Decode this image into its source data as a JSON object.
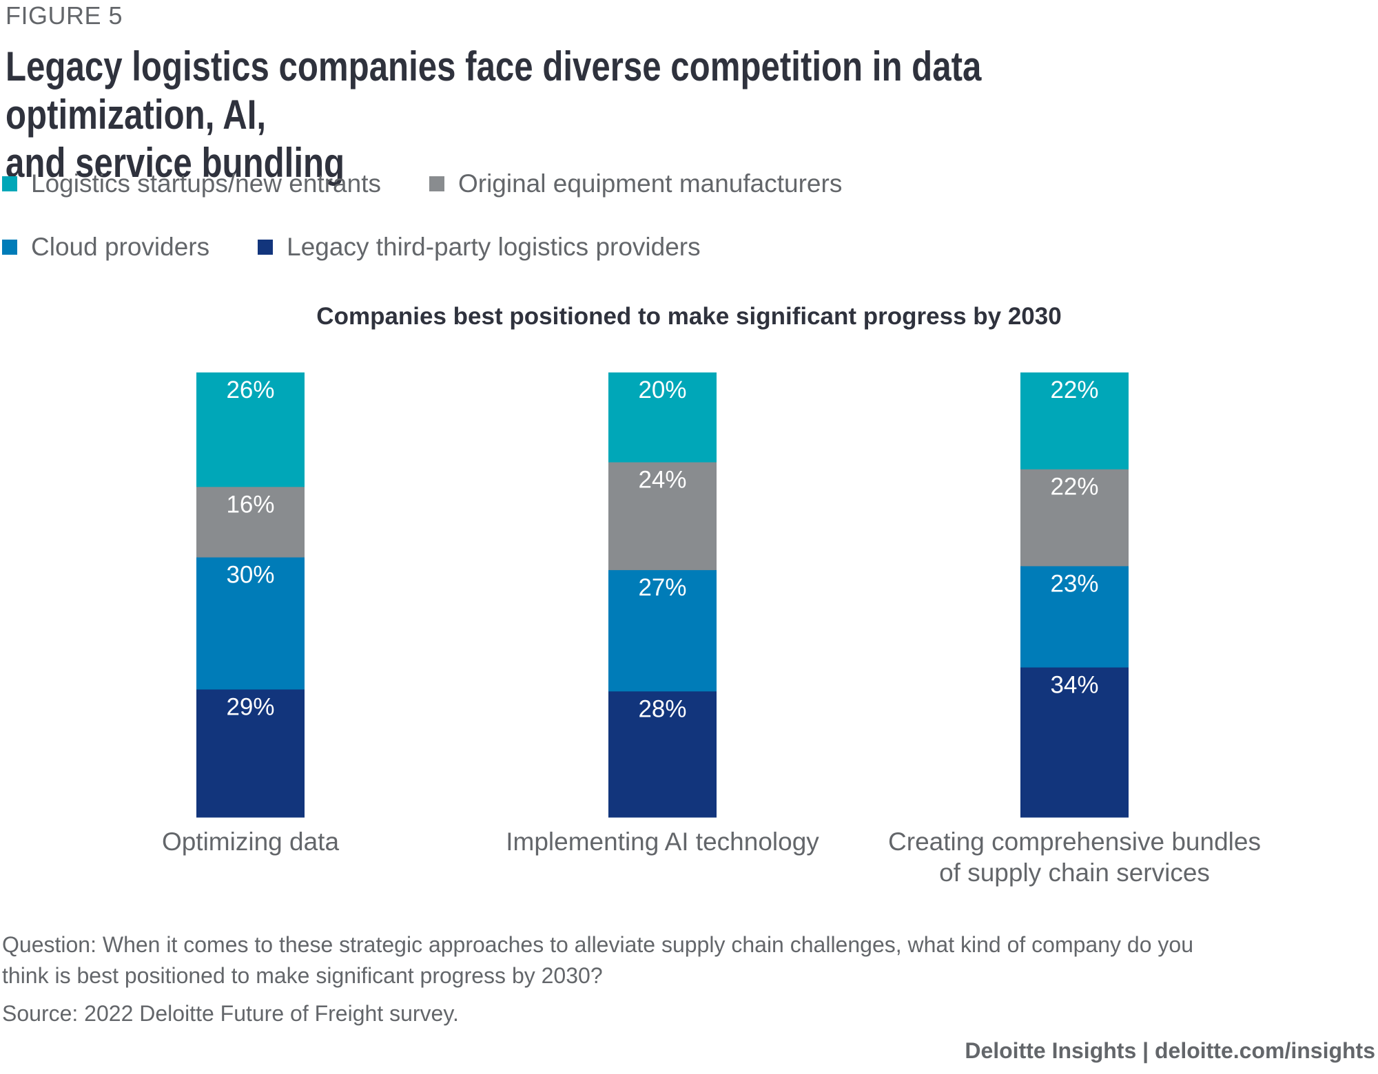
{
  "figure_label": "FIGURE 5",
  "title": "Legacy logistics companies face diverse competition in data optimization, AI, and service bundling",
  "title_line1": "Legacy logistics companies face diverse competition in data optimization, AI,",
  "title_line2": "and service bundling",
  "legend": [
    {
      "label": "Logistics startups/new entrants",
      "color": "#00a7b8"
    },
    {
      "label": "Original equipment manufacturers",
      "color": "#898c8f"
    },
    {
      "label": "Cloud providers",
      "color": "#007cb8"
    },
    {
      "label": "Legacy third-party logistics providers",
      "color": "#12357c"
    }
  ],
  "footnote": {
    "question_line1": "Question: When it comes to these strategic approaches to alleviate supply chain challenges, what kind of company do you",
    "question_line2": "think is best positioned to make significant progress by 2030?",
    "source": "Source: 2022 Deloitte Future of Freight survey."
  },
  "branding": "Deloitte Insights | deloitte.com/insights",
  "chart_data": {
    "type": "bar",
    "stacked": true,
    "orientation": "vertical",
    "title": "Companies best positioned to make significant progress by 2030",
    "xlabel": "",
    "ylabel": "",
    "categories": [
      "Optimizing data",
      "Implementing AI technology",
      "Creating comprehensive bundles of supply chain services"
    ],
    "category_lines": [
      [
        "Optimizing data"
      ],
      [
        "Implementing AI technology"
      ],
      [
        "Creating comprehensive bundles",
        "of supply chain services"
      ]
    ],
    "series": [
      {
        "name": "Logistics startups/new entrants",
        "color": "#00a7b8",
        "values": [
          26,
          20,
          22
        ]
      },
      {
        "name": "Original equipment manufacturers",
        "color": "#898c8f",
        "values": [
          16,
          24,
          22
        ]
      },
      {
        "name": "Cloud providers",
        "color": "#007cb8",
        "values": [
          30,
          27,
          23
        ]
      },
      {
        "name": "Legacy third-party logistics providers",
        "color": "#12357c",
        "values": [
          29,
          28,
          34
        ]
      }
    ],
    "stack_order_top_to_bottom": [
      "Logistics startups/new entrants",
      "Original equipment manufacturers",
      "Cloud providers",
      "Legacy third-party logistics providers"
    ],
    "value_suffix": "%",
    "data_labels": true,
    "grid": false,
    "legend_position": "top-left",
    "ylim": [
      0,
      100
    ]
  }
}
